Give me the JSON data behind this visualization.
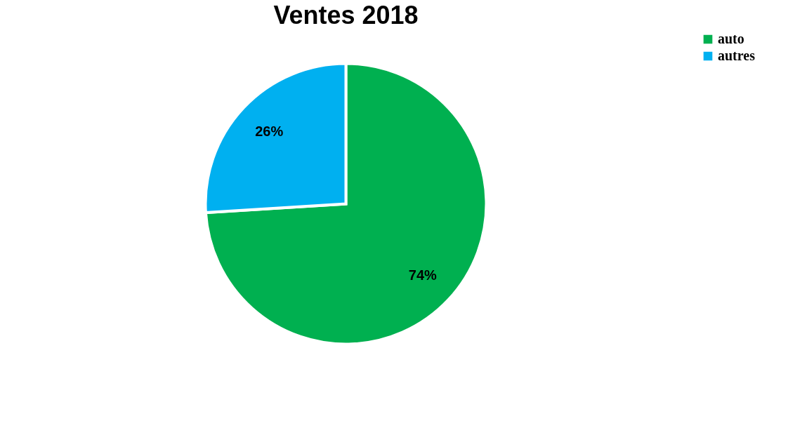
{
  "chart_data": {
    "type": "pie",
    "title": "Ventes 2018",
    "categories": [
      "auto",
      "autres"
    ],
    "values": [
      74,
      26
    ],
    "colors": [
      "#00b050",
      "#00b0f0"
    ],
    "value_labels": [
      "74%",
      "26%"
    ],
    "legend": "right"
  }
}
